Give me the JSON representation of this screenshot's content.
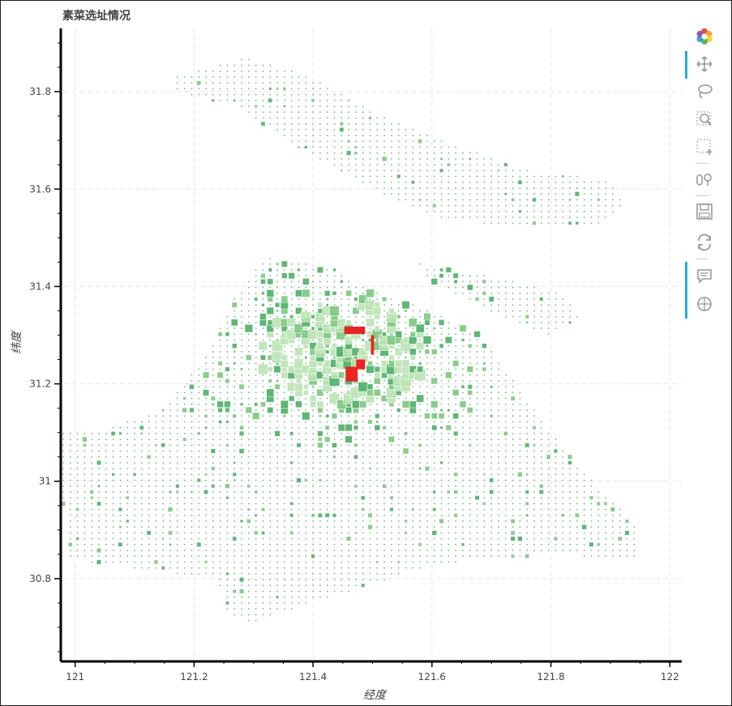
{
  "chart_data": {
    "type": "scatter",
    "title": "素菜选址情况",
    "xlabel": "经度",
    "ylabel": "纬度",
    "xlim": [
      120.98,
      122.02
    ],
    "ylim": [
      30.63,
      31.93
    ],
    "x_ticks": [
      121,
      121.2,
      121.4,
      121.6,
      121.8,
      122
    ],
    "x_tick_labels": [
      "121",
      "121.2",
      "121.4",
      "121.6",
      "121.8",
      "122"
    ],
    "y_ticks": [
      30.8,
      31,
      31.2,
      31.4,
      31.6,
      31.8
    ],
    "y_tick_labels": [
      "30.8",
      "31",
      "31.2",
      "31.4",
      "31.6",
      "31.8"
    ],
    "grid": true,
    "marker": "square",
    "colors": {
      "low": "#b7e2b0",
      "mid": "#74c476",
      "high": "#41ab5d",
      "hot": "#ee2222"
    },
    "regions": [
      {
        "name": "main",
        "polygon": [
          [
            121.06,
            31.11
          ],
          [
            121.15,
            31.15
          ],
          [
            121.22,
            31.26
          ],
          [
            121.27,
            31.38
          ],
          [
            121.32,
            31.46
          ],
          [
            121.43,
            31.44
          ],
          [
            121.5,
            31.39
          ],
          [
            121.6,
            31.35
          ],
          [
            121.68,
            31.3
          ],
          [
            121.73,
            31.22
          ],
          [
            121.8,
            31.1
          ],
          [
            121.87,
            31.0
          ],
          [
            121.95,
            30.9
          ],
          [
            121.94,
            30.84
          ],
          [
            121.8,
            30.85
          ],
          [
            121.6,
            30.83
          ],
          [
            121.48,
            30.78
          ],
          [
            121.4,
            30.75
          ],
          [
            121.3,
            30.71
          ],
          [
            121.26,
            30.72
          ],
          [
            121.24,
            30.8
          ],
          [
            121.1,
            30.82
          ],
          [
            120.99,
            30.84
          ],
          [
            120.98,
            30.95
          ],
          [
            120.95,
            31.05
          ],
          [
            120.9,
            31.1
          ]
        ]
      },
      {
        "name": "chongming",
        "polygon": [
          [
            121.17,
            31.83
          ],
          [
            121.28,
            31.87
          ],
          [
            121.38,
            31.84
          ],
          [
            121.5,
            31.76
          ],
          [
            121.62,
            31.7
          ],
          [
            121.75,
            31.64
          ],
          [
            121.89,
            31.62
          ],
          [
            121.93,
            31.57
          ],
          [
            121.87,
            31.52
          ],
          [
            121.75,
            31.52
          ],
          [
            121.62,
            31.54
          ],
          [
            121.5,
            31.6
          ],
          [
            121.38,
            31.68
          ],
          [
            121.27,
            31.77
          ],
          [
            121.17,
            31.8
          ]
        ]
      },
      {
        "name": "changxing",
        "polygon": [
          [
            121.57,
            31.45
          ],
          [
            121.7,
            31.42
          ],
          [
            121.81,
            31.39
          ],
          [
            121.85,
            31.34
          ],
          [
            121.8,
            31.3
          ],
          [
            121.7,
            31.35
          ],
          [
            121.6,
            31.41
          ]
        ]
      }
    ],
    "hotspots": [
      {
        "x": 121.47,
        "y": 31.31,
        "w": 0.035,
        "h": 0.015
      },
      {
        "x": 121.465,
        "y": 31.22,
        "w": 0.02,
        "h": 0.03
      },
      {
        "x": 121.48,
        "y": 31.24,
        "w": 0.015,
        "h": 0.02
      },
      {
        "x": 121.5,
        "y": 31.28,
        "w": 0.005,
        "h": 0.04
      }
    ]
  },
  "toolbar": {
    "items": [
      "bokeh-logo",
      "pan",
      "lasso-select",
      "zoom",
      "box-select",
      "hover",
      "save",
      "reset",
      "comment",
      "crosshair"
    ]
  }
}
